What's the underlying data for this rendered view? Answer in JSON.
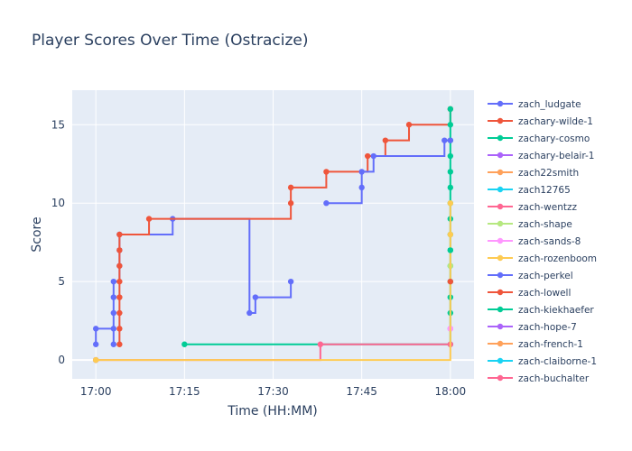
{
  "chart_data": {
    "type": "line",
    "line_shape": "step",
    "title": "Player Scores Over Time (Ostracize)",
    "xlabel": "Time (HH:MM)",
    "ylabel": "Score",
    "x_ticks": [
      "17:00",
      "17:15",
      "17:30",
      "17:45",
      "18:00"
    ],
    "y_ticks": [
      0,
      5,
      10,
      15
    ],
    "xlim": [
      "16:56",
      "18:04"
    ],
    "ylim": [
      -1.2,
      17.2
    ],
    "grid": true,
    "legend_position": "right",
    "plot_background": "#e5ecf6",
    "series": [
      {
        "name": "zach_ludgate",
        "color": "#636efa",
        "x": [
          "17:00",
          "17:00",
          "17:03",
          "17:03",
          "17:03",
          "17:03",
          "17:03",
          "17:04",
          "17:04",
          "17:04",
          "17:13",
          "17:26",
          "17:27",
          "17:33"
        ],
        "y": [
          1,
          2,
          1,
          2,
          3,
          4,
          5,
          6,
          7,
          8,
          9,
          3,
          4,
          5
        ]
      },
      {
        "name": "zachary-wilde-1",
        "color": "#ef553b",
        "x": [
          "17:04",
          "17:04",
          "17:04",
          "17:04",
          "17:04",
          "17:04",
          "17:04",
          "17:04",
          "17:09",
          "17:33",
          "17:33",
          "17:39",
          "17:46",
          "17:49",
          "17:53",
          "18:00"
        ],
        "y": [
          1,
          2,
          3,
          4,
          5,
          6,
          7,
          8,
          9,
          10,
          11,
          12,
          13,
          14,
          15,
          16
        ]
      },
      {
        "name": "zachary-cosmo",
        "color": "#00cc96",
        "x": [
          "17:15",
          "18:00",
          "18:00",
          "18:00",
          "18:00",
          "18:00",
          "18:00",
          "18:00",
          "18:00",
          "18:00",
          "18:00",
          "18:00",
          "18:00",
          "18:00",
          "18:00",
          "18:00"
        ],
        "y": [
          1,
          1,
          3,
          4,
          5,
          6,
          7,
          8,
          9,
          10,
          11,
          12,
          13,
          14,
          15,
          16
        ]
      },
      {
        "name": "zachary-belair-1",
        "color": "#ab63fa",
        "x": [
          "18:00"
        ],
        "y": [
          2
        ]
      },
      {
        "name": "zach22smith",
        "color": "#ffa15a",
        "x": [
          "17:00"
        ],
        "y": [
          0
        ]
      },
      {
        "name": "zach12765",
        "color": "#19d3f3",
        "x": [
          "17:00"
        ],
        "y": [
          0
        ]
      },
      {
        "name": "zach-wentzz",
        "color": "#ff6692",
        "x": [
          "17:00",
          "17:38",
          "18:00"
        ],
        "y": [
          0,
          1,
          1
        ]
      },
      {
        "name": "zach-shape",
        "color": "#b6e880",
        "x": [
          "18:00"
        ],
        "y": [
          6
        ]
      },
      {
        "name": "zach-sands-8",
        "color": "#ff97ff",
        "x": [
          "18:00"
        ],
        "y": [
          2
        ]
      },
      {
        "name": "zach-rozenboom",
        "color": "#fecb52",
        "x": [
          "17:00",
          "18:00",
          "18:00"
        ],
        "y": [
          0,
          8,
          10
        ]
      },
      {
        "name": "zach-perkel",
        "color": "#636efa",
        "x": [
          "17:39",
          "17:45",
          "17:45",
          "17:47",
          "17:59",
          "18:00"
        ],
        "y": [
          10,
          11,
          12,
          13,
          14,
          14
        ]
      },
      {
        "name": "zach-lowell",
        "color": "#ef553b",
        "x": [
          "18:00"
        ],
        "y": [
          5
        ]
      },
      {
        "name": "zach-kiekhaefer",
        "color": "#00cc96",
        "x": [
          "18:00"
        ],
        "y": [
          7
        ]
      },
      {
        "name": "zach-hope-7",
        "color": "#ab63fa",
        "x": [],
        "y": []
      },
      {
        "name": "zach-french-1",
        "color": "#ffa15a",
        "x": [],
        "y": []
      },
      {
        "name": "zach-claiborne-1",
        "color": "#19d3f3",
        "x": [],
        "y": []
      },
      {
        "name": "zach-buchalter",
        "color": "#ff6692",
        "x": [],
        "y": []
      }
    ]
  }
}
